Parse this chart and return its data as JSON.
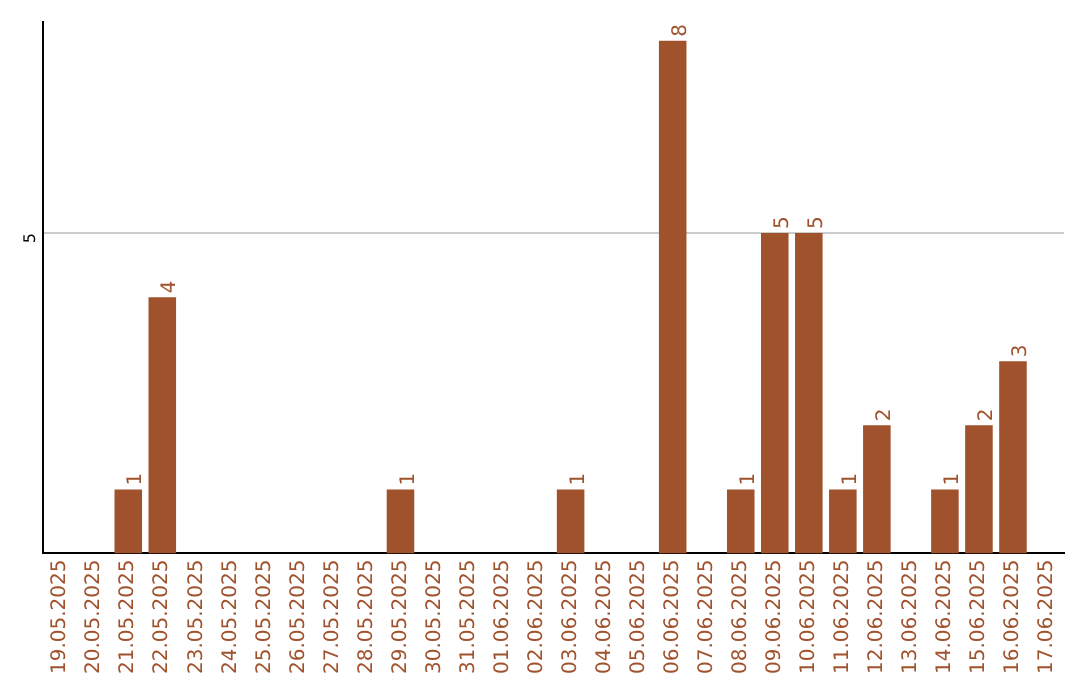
{
  "chart_data": {
    "type": "bar",
    "categories": [
      "19.05.2025",
      "20.05.2025",
      "21.05.2025",
      "22.05.2025",
      "23.05.2025",
      "24.05.2025",
      "25.05.2025",
      "26.05.2025",
      "27.05.2025",
      "28.05.2025",
      "29.05.2025",
      "30.05.2025",
      "31.05.2025",
      "01.06.2025",
      "02.06.2025",
      "03.06.2025",
      "04.06.2025",
      "05.06.2025",
      "06.06.2025",
      "07.06.2025",
      "08.06.2025",
      "09.06.2025",
      "10.06.2025",
      "11.06.2025",
      "12.06.2025",
      "13.06.2025",
      "14.06.2025",
      "15.06.2025",
      "16.06.2025",
      "17.06.2025"
    ],
    "values": [
      0,
      0,
      1,
      4,
      0,
      0,
      0,
      0,
      0,
      0,
      1,
      0,
      0,
      0,
      0,
      1,
      0,
      0,
      8,
      0,
      1,
      5,
      5,
      1,
      2,
      0,
      1,
      2,
      3,
      0
    ],
    "value_labels": [
      null,
      null,
      "1",
      "4",
      null,
      null,
      null,
      null,
      null,
      null,
      "1",
      null,
      null,
      null,
      null,
      "1",
      null,
      null,
      "8",
      null,
      "1",
      "5",
      "5",
      "1",
      "2",
      null,
      "1",
      "2",
      "3",
      null
    ],
    "color": "#a0522d",
    "ylim": [
      0,
      8.3
    ],
    "yticks": [
      5
    ],
    "grid": "y",
    "legend": false
  }
}
